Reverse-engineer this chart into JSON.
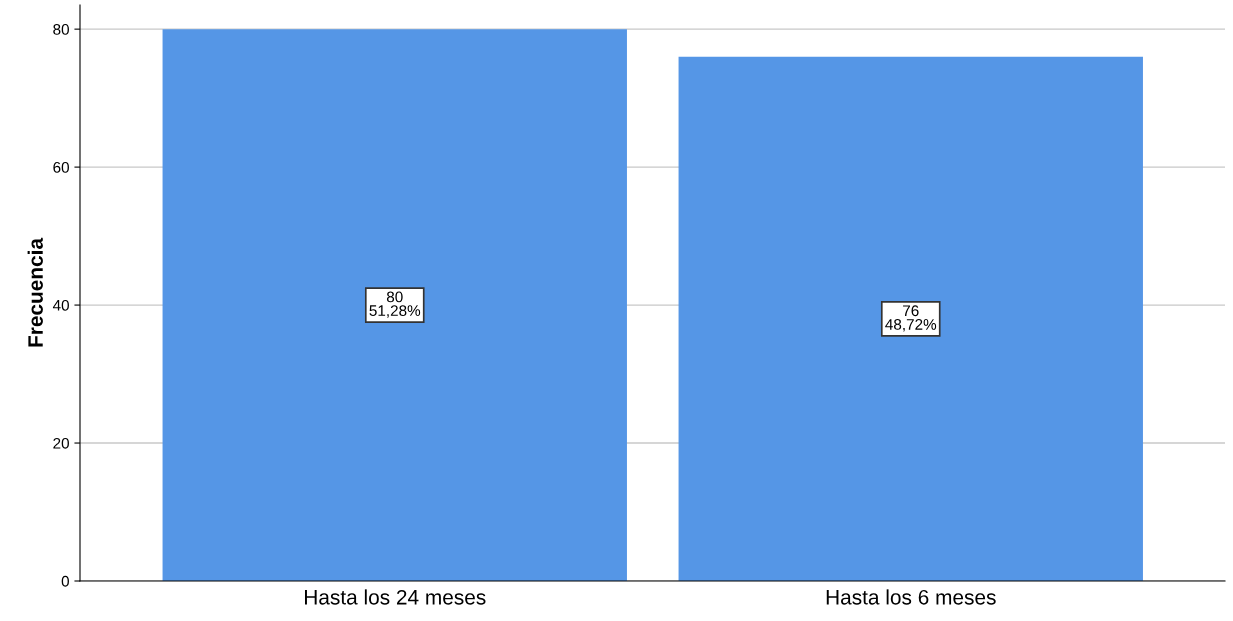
{
  "chart_data": {
    "type": "bar",
    "ylabel": "Frecuencia",
    "categories": [
      "Hasta los 24 meses",
      "Hasta los 6 meses"
    ],
    "values": [
      80,
      76
    ],
    "color": "#5596e6",
    "value_labels": [
      "80\n51,28%",
      "76\n48,72%"
    ],
    "ylim": [
      0,
      83.5
    ],
    "yticks": [
      0,
      20,
      40,
      60,
      80
    ],
    "grid": "y"
  }
}
